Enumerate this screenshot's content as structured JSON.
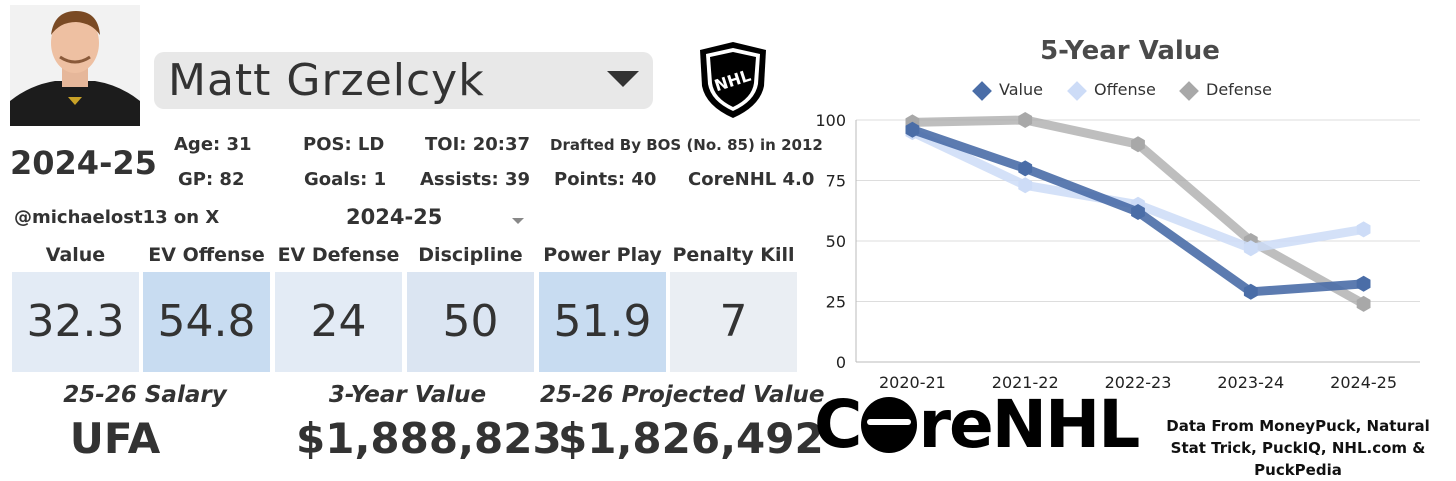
{
  "player": {
    "name": "Matt Grzelcyk",
    "season_label": "2024-25"
  },
  "bio": {
    "age": "Age: 31",
    "pos": "POS: LD",
    "toi": "TOI: 20:37",
    "drafted": "Drafted By BOS (No. 85) in 2012",
    "gp": "GP: 82",
    "goals": "Goals: 1",
    "assists": "Assists: 39",
    "points": "Points: 40",
    "rating": "CoreNHL 4.0"
  },
  "handle": "@michaelost13 on X",
  "season_selector": {
    "value": "2024-25"
  },
  "categories": [
    {
      "label": "Value",
      "value": "32.3",
      "color": "#e3ebf5"
    },
    {
      "label": "EV Offense",
      "value": "54.8",
      "color": "#c8dcf1"
    },
    {
      "label": "EV Defense",
      "value": "24",
      "color": "#e3ebf5"
    },
    {
      "label": "Discipline",
      "value": "50",
      "color": "#dbe5f2"
    },
    {
      "label": "Power Play",
      "value": "51.9",
      "color": "#c8dcf1"
    },
    {
      "label": "Penalty Kill",
      "value": "7",
      "color": "#eaeef3"
    }
  ],
  "footer": {
    "salary_label": "25-26 Salary",
    "salary_value": "UFA",
    "three_year_label": "3-Year Value",
    "three_year_value": "$1,888,823",
    "projected_label": "25-26 Projected Value",
    "projected_value": "$1,826,492"
  },
  "brand": {
    "logo_text_pre": "C",
    "logo_text_post": "reNHL",
    "credit": "Data From MoneyPuck, Natural Stat Trick, PuckIQ, NHL.com & PuckPedia"
  },
  "colors": {
    "value": "#4a6da7",
    "offense": "#cddcf7",
    "defense": "#a8a8a8"
  },
  "chart_data": {
    "type": "line",
    "title": "5-Year Value",
    "categories": [
      "2020-21",
      "2021-22",
      "2022-23",
      "2023-24",
      "2024-25"
    ],
    "series": [
      {
        "name": "Value",
        "values": [
          96,
          80,
          62,
          29,
          32.3
        ]
      },
      {
        "name": "Offense",
        "values": [
          95,
          73,
          65,
          47,
          54.8
        ]
      },
      {
        "name": "Defense",
        "values": [
          99,
          100,
          90,
          50,
          24
        ]
      }
    ],
    "ylim": [
      0,
      100
    ],
    "yticks": [
      0,
      25,
      50,
      75,
      100
    ],
    "legend": "top",
    "grid": true
  }
}
